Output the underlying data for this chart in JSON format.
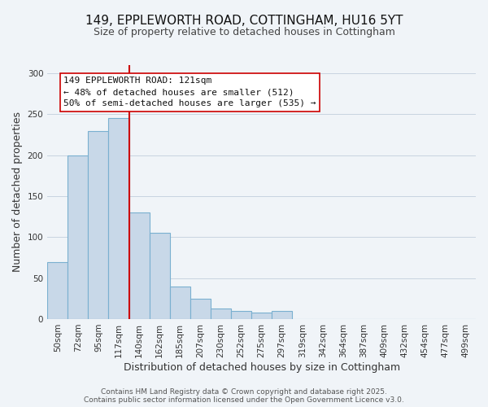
{
  "title": "149, EPPLEWORTH ROAD, COTTINGHAM, HU16 5YT",
  "subtitle": "Size of property relative to detached houses in Cottingham",
  "xlabel": "Distribution of detached houses by size in Cottingham",
  "ylabel": "Number of detached properties",
  "bar_labels": [
    "50sqm",
    "72sqm",
    "95sqm",
    "117sqm",
    "140sqm",
    "162sqm",
    "185sqm",
    "207sqm",
    "230sqm",
    "252sqm",
    "275sqm",
    "297sqm",
    "319sqm",
    "342sqm",
    "364sqm",
    "387sqm",
    "409sqm",
    "432sqm",
    "454sqm",
    "477sqm",
    "499sqm"
  ],
  "bar_values": [
    70,
    200,
    230,
    245,
    130,
    105,
    40,
    25,
    13,
    10,
    8,
    10,
    0,
    0,
    0,
    0,
    0,
    0,
    0,
    0,
    0
  ],
  "bar_color": "#c8d8e8",
  "bar_edgecolor": "#7ab0d0",
  "vline_x": 3.5,
  "vline_color": "#cc0000",
  "ylim": [
    0,
    310
  ],
  "yticks": [
    0,
    50,
    100,
    150,
    200,
    250,
    300
  ],
  "annotation_lines": [
    "149 EPPLEWORTH ROAD: 121sqm",
    "← 48% of detached houses are smaller (512)",
    "50% of semi-detached houses are larger (535) →"
  ],
  "footer1": "Contains HM Land Registry data © Crown copyright and database right 2025.",
  "footer2": "Contains public sector information licensed under the Open Government Licence v3.0.",
  "bg_color": "#f0f4f8",
  "grid_color": "#c8d4e0",
  "title_fontsize": 11,
  "subtitle_fontsize": 9,
  "axis_label_fontsize": 9,
  "tick_fontsize": 7.5,
  "annotation_fontsize": 8,
  "footer_fontsize": 6.5
}
